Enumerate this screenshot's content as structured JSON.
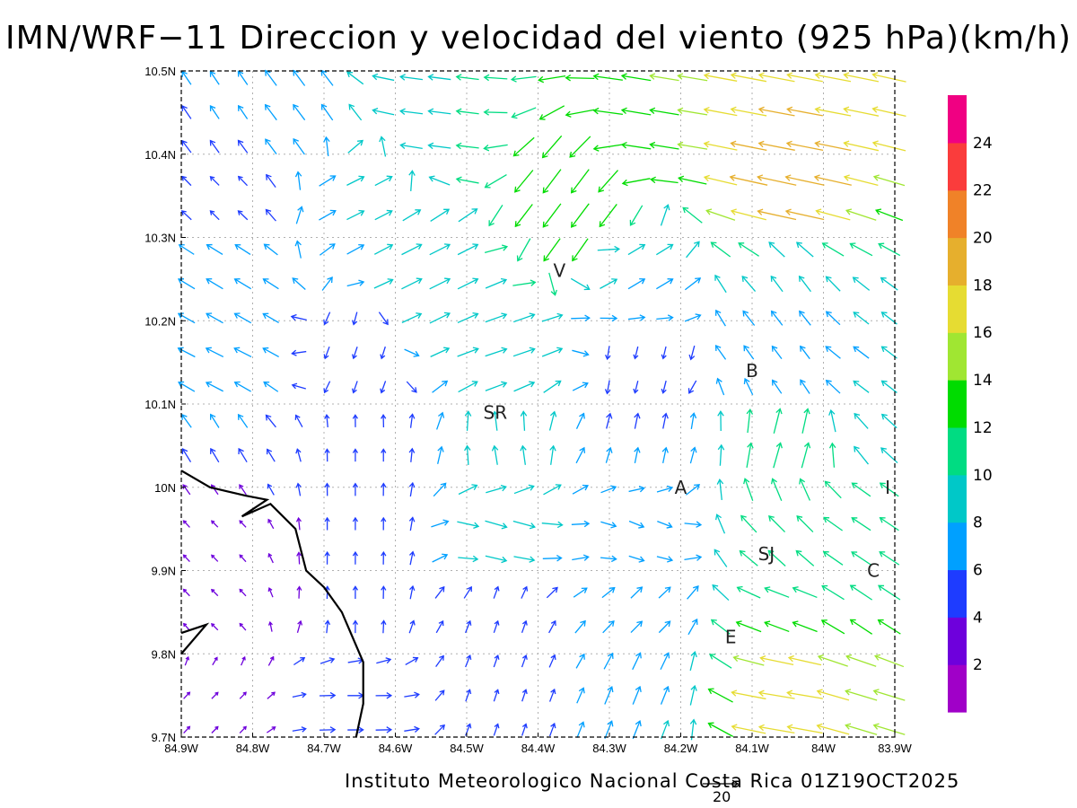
{
  "title": "IMN/WRF−11 Direccion y velocidad del viento (925 hPa)(km/h)",
  "footer": "Instituto Meteorologico Nacional Costa Rica 01Z19OCT2025",
  "reference_vector": {
    "label": "20",
    "value": 20
  },
  "map": {
    "lon_range": [
      -84.9,
      -83.9
    ],
    "lat_range": [
      9.7,
      10.5
    ],
    "grid": true,
    "x_ticks": [
      "84.9W",
      "84.8W",
      "84.7W",
      "84.6W",
      "84.5W",
      "84.4W",
      "84.3W",
      "84.2W",
      "84.1W",
      "84W",
      "83.9W"
    ],
    "y_ticks": [
      "9.7N",
      "9.8N",
      "9.9N",
      "10N",
      "10.1N",
      "10.2N",
      "10.3N",
      "10.4N",
      "10.5N"
    ],
    "places": [
      {
        "name": "V",
        "lon": -84.37,
        "lat": 10.26
      },
      {
        "name": "SR",
        "lon": -84.46,
        "lat": 10.09
      },
      {
        "name": "B",
        "lon": -84.1,
        "lat": 10.14
      },
      {
        "name": "A",
        "lon": -84.2,
        "lat": 10.0
      },
      {
        "name": "I",
        "lon": -83.91,
        "lat": 10.0
      },
      {
        "name": "SJ",
        "lon": -84.08,
        "lat": 9.92
      },
      {
        "name": "C",
        "lon": -83.93,
        "lat": 9.9
      },
      {
        "name": "E",
        "lon": -84.13,
        "lat": 9.82
      }
    ],
    "coastline": [
      [
        -84.9,
        10.02
      ],
      [
        -84.86,
        10.0
      ],
      [
        -84.81,
        9.99
      ],
      [
        -84.78,
        9.985
      ],
      [
        -84.815,
        9.965
      ],
      [
        -84.775,
        9.98
      ],
      [
        -84.74,
        9.95
      ],
      [
        -84.725,
        9.9
      ],
      [
        -84.7,
        9.88
      ],
      [
        -84.675,
        9.85
      ],
      [
        -84.645,
        9.79
      ],
      [
        -84.645,
        9.74
      ],
      [
        -84.655,
        9.7
      ]
    ],
    "coastline2": [
      [
        -84.9,
        9.825
      ],
      [
        -84.865,
        9.835
      ],
      [
        -84.9,
        9.8
      ]
    ]
  },
  "colorbar": {
    "colors": [
      "#a000c8",
      "#6e00dc",
      "#1e3cff",
      "#00a0ff",
      "#00c8c8",
      "#00dc82",
      "#00dc00",
      "#a0e632",
      "#e6dc32",
      "#e6af2d",
      "#f08228",
      "#fa3c3c",
      "#f00082"
    ],
    "labels": [
      "2",
      "4",
      "6",
      "8",
      "10",
      "12",
      "14",
      "16",
      "18",
      "20",
      "22",
      "24"
    ]
  },
  "wind_barb_centers": [
    {
      "lon": -84.85,
      "lat": 10.45,
      "u": -2,
      "v": 3,
      "speed": 6
    },
    {
      "lon": -84.75,
      "lat": 10.45,
      "u": -3,
      "v": 4,
      "speed": 8
    },
    {
      "lon": -84.55,
      "lat": 10.45,
      "u": -8,
      "v": 1,
      "speed": 10
    },
    {
      "lon": -84.25,
      "lat": 10.45,
      "u": -12,
      "v": 2,
      "speed": 14
    },
    {
      "lon": -84.05,
      "lat": 10.45,
      "u": -16,
      "v": 3,
      "speed": 18
    },
    {
      "lon": -84.85,
      "lat": 10.35,
      "u": -2,
      "v": 2,
      "speed": 4
    },
    {
      "lon": -84.65,
      "lat": 10.35,
      "u": 4,
      "v": 2,
      "speed": 8
    },
    {
      "lon": -84.35,
      "lat": 10.35,
      "u": -6,
      "v": -8,
      "speed": 14
    },
    {
      "lon": -84.05,
      "lat": 10.35,
      "u": -14,
      "v": 3,
      "speed": 20
    },
    {
      "lon": -84.85,
      "lat": 10.25,
      "u": -5,
      "v": 3,
      "speed": 8
    },
    {
      "lon": -84.55,
      "lat": 10.25,
      "u": 6,
      "v": 3,
      "speed": 10
    },
    {
      "lon": -84.25,
      "lat": 10.25,
      "u": 5,
      "v": 3,
      "speed": 8
    },
    {
      "lon": -84.05,
      "lat": 10.25,
      "u": -3,
      "v": 4,
      "speed": 8
    },
    {
      "lon": -84.85,
      "lat": 10.15,
      "u": -6,
      "v": 3,
      "speed": 8
    },
    {
      "lon": -84.65,
      "lat": 10.15,
      "u": -1,
      "v": -3,
      "speed": 4
    },
    {
      "lon": -84.45,
      "lat": 10.15,
      "u": 6,
      "v": 2,
      "speed": 10
    },
    {
      "lon": -84.25,
      "lat": 10.15,
      "u": -1,
      "v": -4,
      "speed": 4
    },
    {
      "lon": -84.05,
      "lat": 10.15,
      "u": -3,
      "v": 4,
      "speed": 6
    },
    {
      "lon": -83.95,
      "lat": 10.15,
      "u": -4,
      "v": 3,
      "speed": 8
    },
    {
      "lon": -84.85,
      "lat": 10.05,
      "u": -3,
      "v": 5,
      "speed": 6
    },
    {
      "lon": -84.65,
      "lat": 10.05,
      "u": 0,
      "v": 3,
      "speed": 4
    },
    {
      "lon": -84.45,
      "lat": 10.05,
      "u": -1,
      "v": 6,
      "speed": 8
    },
    {
      "lon": -84.25,
      "lat": 10.05,
      "u": 1,
      "v": 5,
      "speed": 6
    },
    {
      "lon": -84.05,
      "lat": 10.05,
      "u": 2,
      "v": 7,
      "speed": 12
    },
    {
      "lon": -84.85,
      "lat": 9.95,
      "u": -1,
      "v": 1,
      "speed": 2
    },
    {
      "lon": -84.65,
      "lat": 9.95,
      "u": 0,
      "v": 4,
      "speed": 4
    },
    {
      "lon": -84.45,
      "lat": 9.95,
      "u": 7,
      "v": -2,
      "speed": 10
    },
    {
      "lon": -84.25,
      "lat": 9.95,
      "u": 5,
      "v": -2,
      "speed": 6
    },
    {
      "lon": -84.05,
      "lat": 9.95,
      "u": -5,
      "v": 5,
      "speed": 10
    },
    {
      "lon": -83.95,
      "lat": 9.95,
      "u": -6,
      "v": 4,
      "speed": 10
    },
    {
      "lon": -84.85,
      "lat": 9.85,
      "u": -1,
      "v": 1,
      "speed": 2
    },
    {
      "lon": -84.65,
      "lat": 9.85,
      "u": 0,
      "v": 4,
      "speed": 4
    },
    {
      "lon": -84.45,
      "lat": 9.85,
      "u": 1,
      "v": 3,
      "speed": 4
    },
    {
      "lon": -84.25,
      "lat": 9.85,
      "u": 3,
      "v": 3,
      "speed": 6
    },
    {
      "lon": -84.05,
      "lat": 9.85,
      "u": -8,
      "v": 3,
      "speed": 12
    },
    {
      "lon": -83.95,
      "lat": 9.85,
      "u": -6,
      "v": 4,
      "speed": 12
    },
    {
      "lon": -84.85,
      "lat": 9.75,
      "u": 1,
      "v": 1,
      "speed": 2
    },
    {
      "lon": -84.65,
      "lat": 9.75,
      "u": 6,
      "v": 0,
      "speed": 6
    },
    {
      "lon": -84.45,
      "lat": 9.75,
      "u": 1,
      "v": 3,
      "speed": 4
    },
    {
      "lon": -84.25,
      "lat": 9.75,
      "u": 2,
      "v": 5,
      "speed": 8
    },
    {
      "lon": -84.05,
      "lat": 9.75,
      "u": -12,
      "v": 2,
      "speed": 18
    },
    {
      "lon": -83.95,
      "lat": 9.75,
      "u": -10,
      "v": 3,
      "speed": 16
    }
  ]
}
